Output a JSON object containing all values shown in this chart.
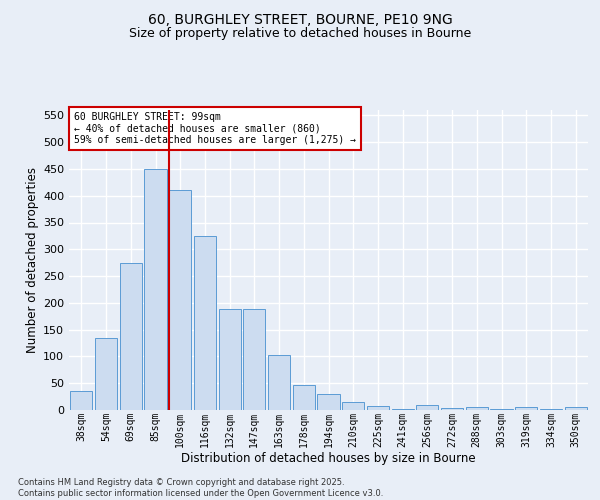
{
  "title_line1": "60, BURGHLEY STREET, BOURNE, PE10 9NG",
  "title_line2": "Size of property relative to detached houses in Bourne",
  "xlabel": "Distribution of detached houses by size in Bourne",
  "ylabel": "Number of detached properties",
  "categories": [
    "38sqm",
    "54sqm",
    "69sqm",
    "85sqm",
    "100sqm",
    "116sqm",
    "132sqm",
    "147sqm",
    "163sqm",
    "178sqm",
    "194sqm",
    "210sqm",
    "225sqm",
    "241sqm",
    "256sqm",
    "272sqm",
    "288sqm",
    "303sqm",
    "319sqm",
    "334sqm",
    "350sqm"
  ],
  "values": [
    35,
    135,
    275,
    450,
    410,
    325,
    188,
    188,
    103,
    47,
    30,
    15,
    7,
    2,
    10,
    3,
    5,
    2,
    5,
    2,
    5
  ],
  "bar_color": "#ccdcf0",
  "bar_edge_color": "#5b9bd5",
  "vline_color": "#cc0000",
  "vline_index": 3.55,
  "annotation_text": "60 BURGHLEY STREET: 99sqm\n← 40% of detached houses are smaller (860)\n59% of semi-detached houses are larger (1,275) →",
  "annotation_box_color": "#ffffff",
  "annotation_box_edge_color": "#cc0000",
  "ylim": [
    0,
    560
  ],
  "yticks": [
    0,
    50,
    100,
    150,
    200,
    250,
    300,
    350,
    400,
    450,
    500,
    550
  ],
  "background_color": "#e8eef7",
  "grid_color": "#ffffff",
  "footer_line1": "Contains HM Land Registry data © Crown copyright and database right 2025.",
  "footer_line2": "Contains public sector information licensed under the Open Government Licence v3.0."
}
